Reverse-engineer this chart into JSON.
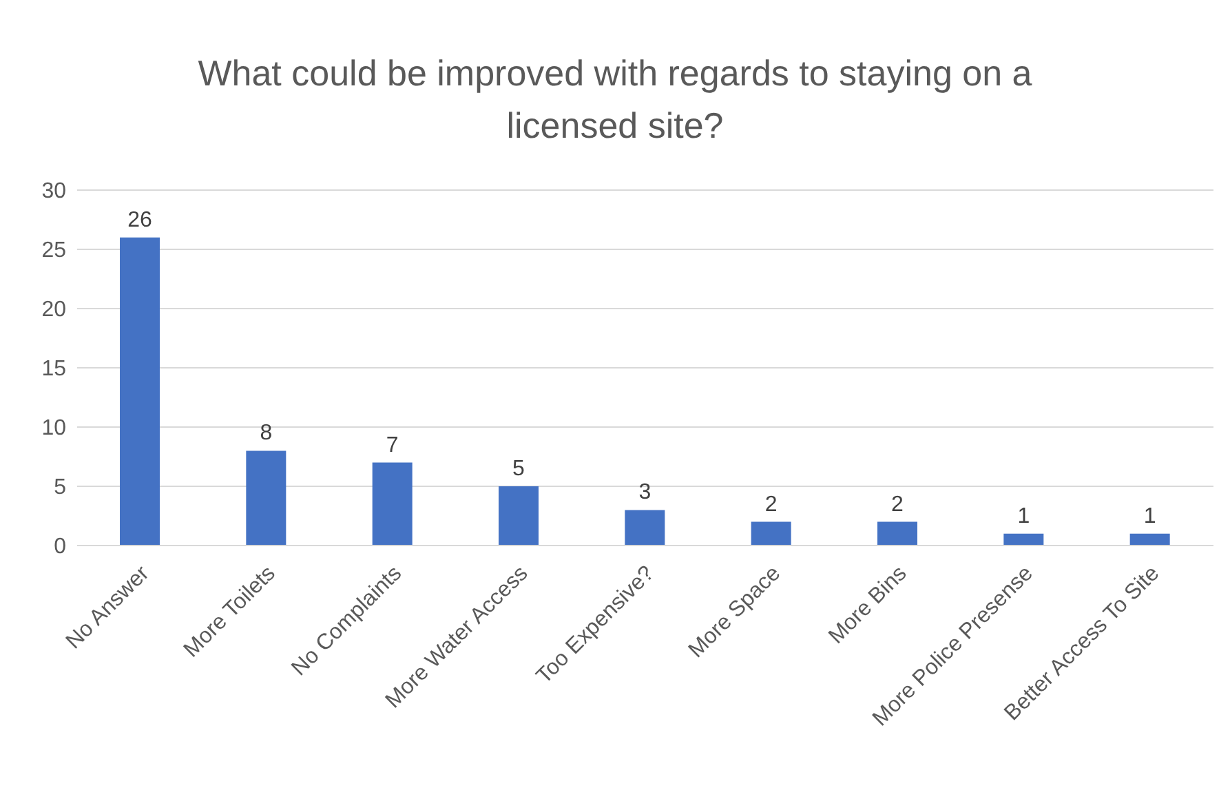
{
  "chart_data": {
    "type": "bar",
    "title": "What could be improved with regards to staying on a licensed site?",
    "categories": [
      "No Answer",
      "More Toilets",
      "No Complaints",
      "More Water Access",
      "Too Expensive?",
      "More Space",
      "More Bins",
      "More Police Presense",
      "Better Access To Site"
    ],
    "values": [
      26,
      8,
      7,
      5,
      3,
      2,
      2,
      1,
      1
    ],
    "color": "#4472c4",
    "ylim": [
      0,
      30
    ],
    "yticks": [
      0,
      5,
      10,
      15,
      20,
      25,
      30
    ],
    "grid": "y",
    "data_labels": true
  }
}
